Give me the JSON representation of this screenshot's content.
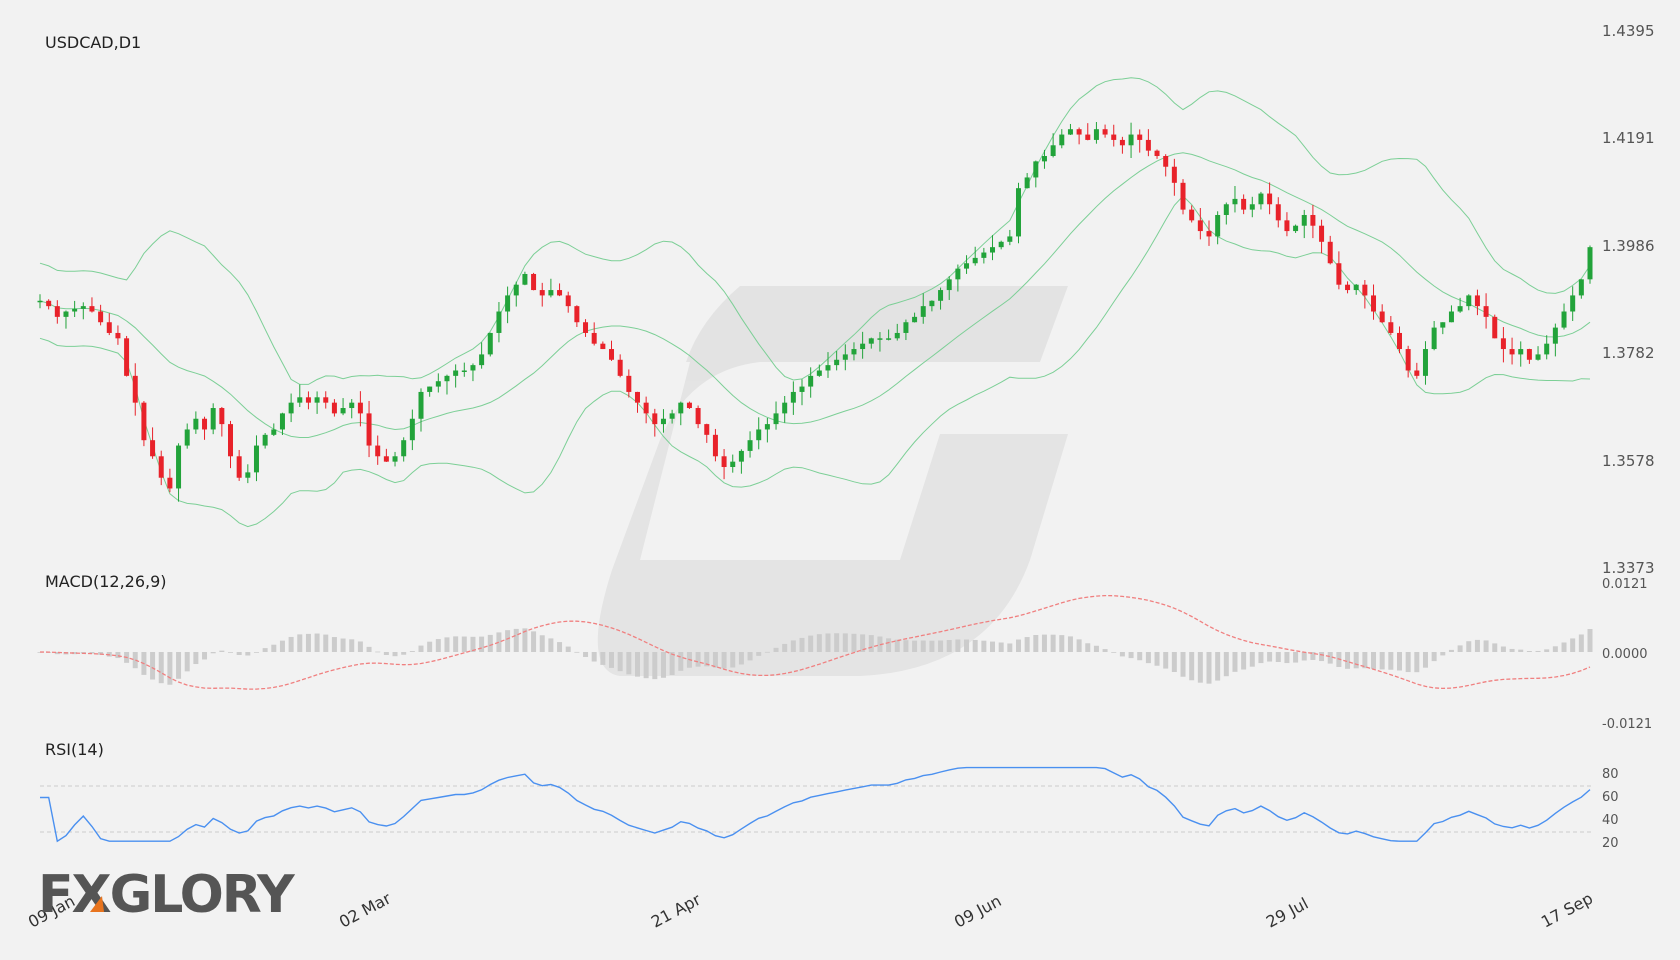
{
  "chart_data": [
    {
      "type": "candlestick",
      "title": "USDCAD,D1",
      "xlabel": "",
      "ylabel": "",
      "ylim": [
        1.3373,
        1.4395
      ],
      "y_ticks": [
        "1.4395",
        "1.4191",
        "1.3986",
        "1.3782",
        "1.3578",
        "1.3373"
      ],
      "x_tick_labels": [
        "09 Jan",
        "02 Mar",
        "21 Apr",
        "09 Jun",
        "29 Jul",
        "17 Sep"
      ],
      "x_tick_index": [
        0,
        37,
        73,
        108,
        142,
        178
      ],
      "overlays": [
        "Bollinger Bands (upper, middle, lower)"
      ],
      "colors": {
        "up": "#22a33a",
        "down": "#e8222a",
        "bands": "#7ccf96"
      }
    },
    {
      "type": "line+bar",
      "title": "MACD(12,26,9)",
      "ylim": [
        -0.0121,
        0.0121
      ],
      "y_ticks": [
        "0.0121",
        "0.0000",
        "-0.0121"
      ],
      "colors": {
        "signal": "#f08080",
        "histogram": "#cccccc"
      }
    },
    {
      "type": "line",
      "title": "RSI(14)",
      "ylim": [
        20,
        80
      ],
      "y_ticks": [
        "80",
        "60",
        "40",
        "20"
      ],
      "reference_lines": [
        70,
        30
      ],
      "colors": {
        "line": "#4a90f0"
      }
    }
  ],
  "watermark": {
    "brand": "FXGLORY",
    "accent": "#e8741e"
  }
}
